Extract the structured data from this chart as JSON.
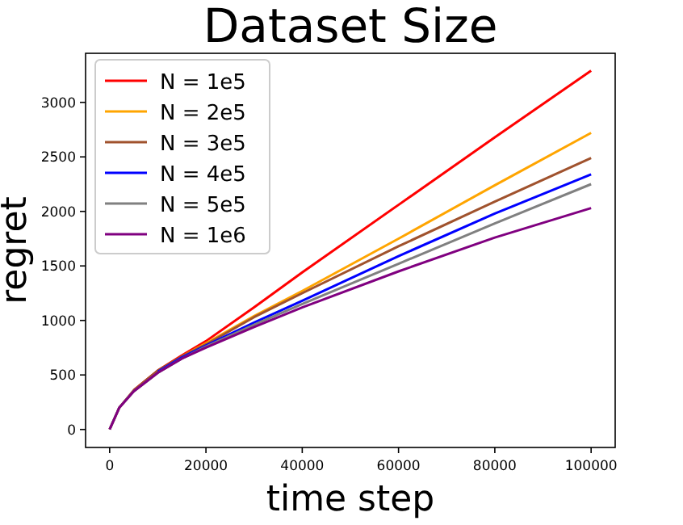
{
  "chart_data": {
    "type": "line",
    "title": "Dataset Size",
    "xlabel": "time step",
    "ylabel": "regret",
    "xlim": [
      -5000,
      105000
    ],
    "ylim": [
      -165,
      3450
    ],
    "xticks": [
      0,
      20000,
      40000,
      60000,
      80000,
      100000
    ],
    "yticks": [
      0,
      500,
      1000,
      1500,
      2000,
      2500,
      3000
    ],
    "x": [
      0,
      2000,
      5000,
      10000,
      15000,
      20000,
      30000,
      40000,
      60000,
      80000,
      100000
    ],
    "series": [
      {
        "name": "N = 1e5",
        "color": "#ff0000",
        "values": [
          null,
          null,
          360,
          540,
          680,
          810,
          1120,
          1440,
          2060,
          2680,
          3290
        ]
      },
      {
        "name": "N = 2e5",
        "color": "#ffa500",
        "values": [
          null,
          null,
          null,
          null,
          670,
          790,
          1040,
          1270,
          1750,
          2240,
          2720
        ]
      },
      {
        "name": "N = 3e5",
        "color": "#a0522d",
        "values": [
          0,
          200,
          360,
          540,
          670,
          780,
          1030,
          1250,
          1680,
          2090,
          2490
        ]
      },
      {
        "name": "N = 4e5",
        "color": "#0000ff",
        "values": [
          null,
          null,
          null,
          530,
          660,
          770,
          980,
          1180,
          1590,
          1980,
          2340
        ]
      },
      {
        "name": "N = 5e5",
        "color": "#808080",
        "values": [
          0,
          200,
          350,
          520,
          650,
          760,
          960,
          1150,
          1520,
          1890,
          2250
        ]
      },
      {
        "name": "N = 1e6",
        "color": "#800080",
        "values": [
          0,
          200,
          350,
          520,
          650,
          750,
          940,
          1120,
          1450,
          1760,
          2030
        ]
      }
    ],
    "legend": "top left",
    "grid": false
  }
}
